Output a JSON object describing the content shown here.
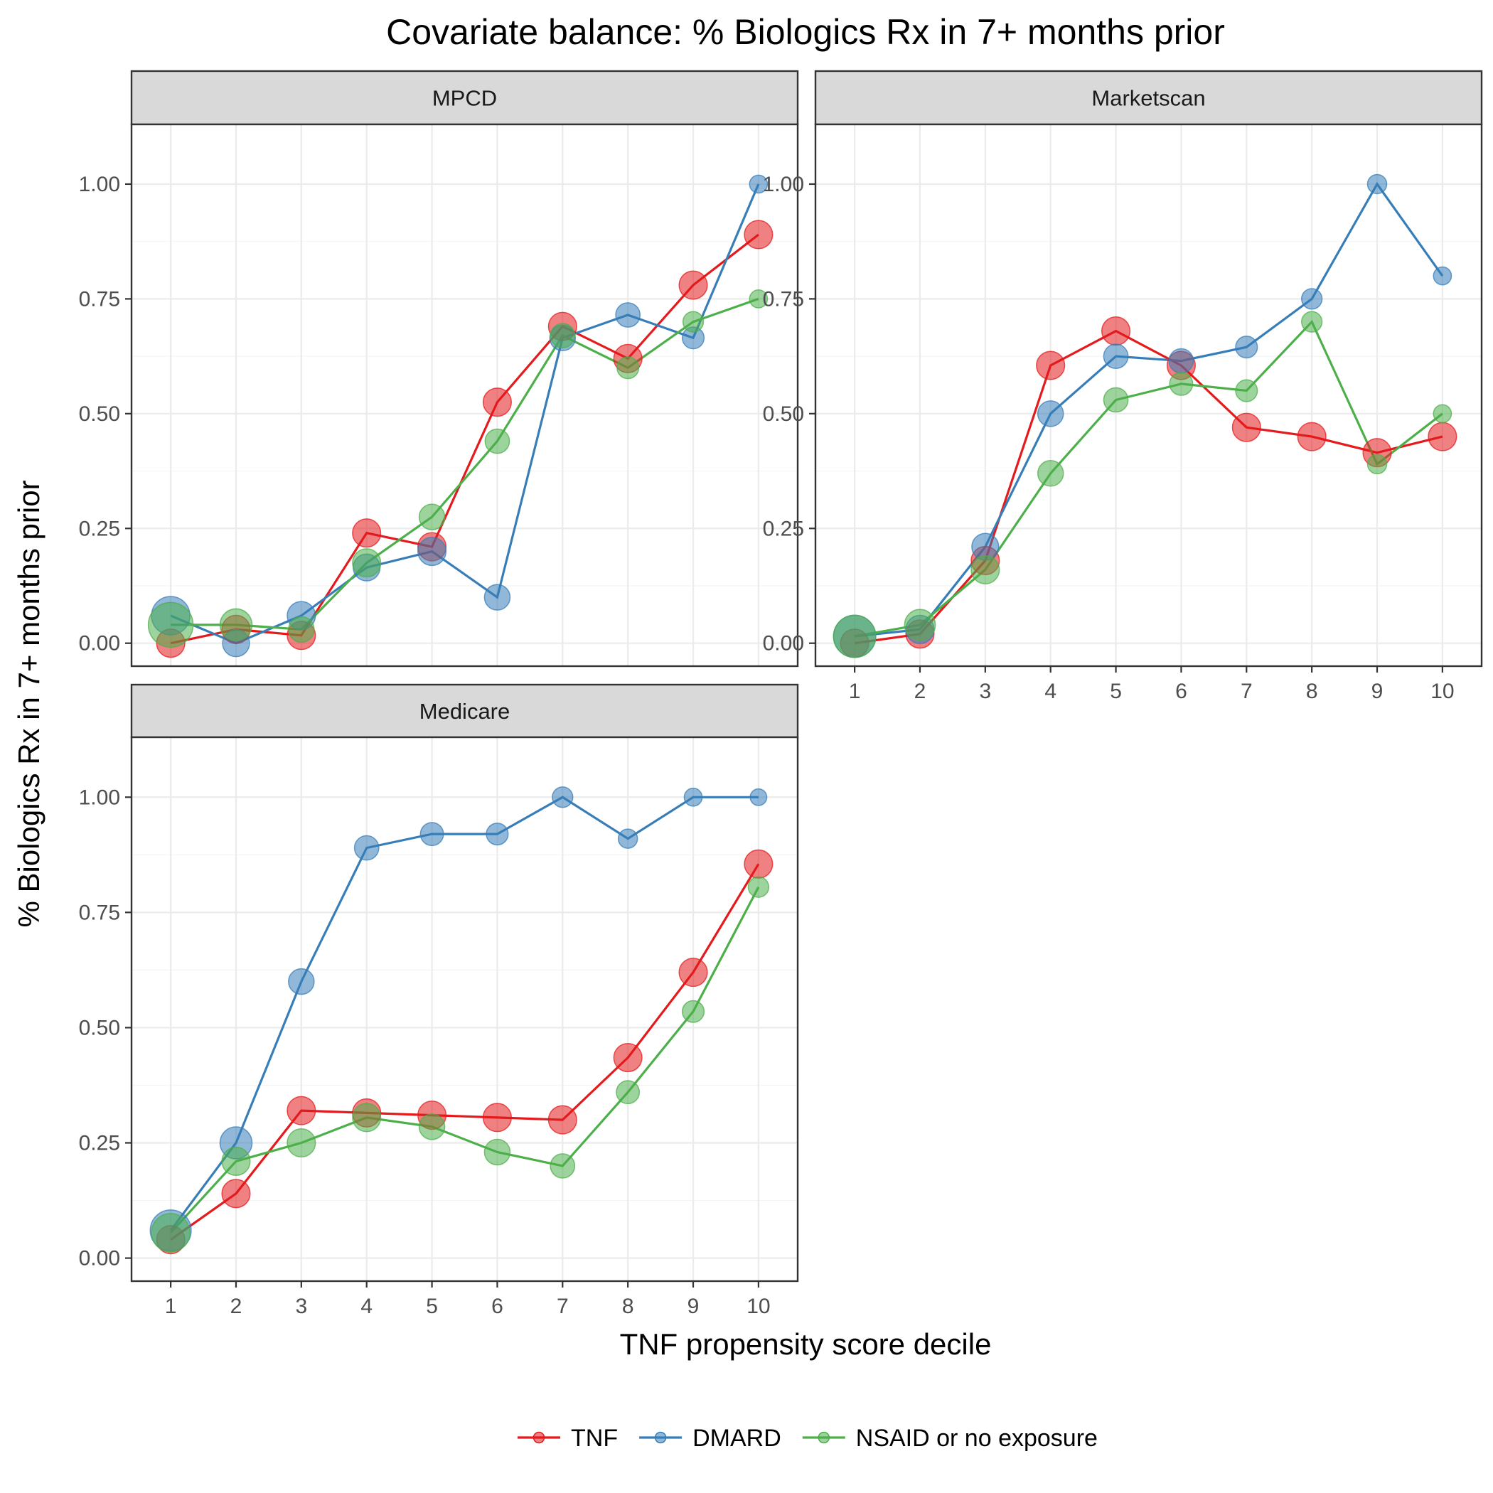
{
  "chart_data": {
    "type": "line",
    "title": "Covariate balance: % Biologics Rx in 7+ months prior",
    "xlabel": "TNF propensity score decile",
    "ylabel": "% Biologics Rx in 7+ months prior",
    "x": [
      1,
      2,
      3,
      4,
      5,
      6,
      7,
      8,
      9,
      10
    ],
    "x_tick_labels": [
      "1",
      "2",
      "3",
      "4",
      "5",
      "6",
      "7",
      "8",
      "9",
      "10"
    ],
    "ylim": [
      -0.05,
      1.13
    ],
    "y_ticks": [
      0,
      0.25,
      0.5,
      0.75,
      1.0
    ],
    "y_tick_labels": [
      "0.00",
      "0.25",
      "0.50",
      "0.75",
      "1.00"
    ],
    "grid": true,
    "legend": {
      "position": "bottom",
      "entries": [
        {
          "label": "TNF",
          "color": "#e41a1c"
        },
        {
          "label": "DMARD",
          "color": "#377eb8"
        },
        {
          "label": "NSAID or no exposure",
          "color": "#4daf4a"
        }
      ]
    },
    "panels": [
      {
        "name": "MPCD",
        "series": [
          {
            "name": "TNF",
            "color": "#e41a1c",
            "values": [
              0.0,
              0.03,
              0.017,
              0.24,
              0.21,
              0.525,
              0.69,
              0.62,
              0.78,
              0.89
            ],
            "sizes": [
              0.6,
              0.6,
              0.6,
              0.6,
              0.6,
              0.6,
              0.6,
              0.6,
              0.6,
              0.6
            ]
          },
          {
            "name": "DMARD",
            "color": "#377eb8",
            "values": [
              0.06,
              0.0,
              0.06,
              0.165,
              0.2,
              0.1,
              0.665,
              0.715,
              0.665,
              1.0
            ],
            "sizes": [
              1.0,
              0.55,
              0.6,
              0.55,
              0.6,
              0.5,
              0.5,
              0.45,
              0.35,
              0.2
            ]
          },
          {
            "name": "NSAID or no exposure",
            "color": "#4daf4a",
            "values": [
              0.04,
              0.04,
              0.03,
              0.175,
              0.275,
              0.44,
              0.67,
              0.6,
              0.7,
              0.75
            ],
            "sizes": [
              1.25,
              0.75,
              0.5,
              0.6,
              0.5,
              0.45,
              0.45,
              0.35,
              0.3,
              0.2
            ]
          }
        ]
      },
      {
        "name": "Marketscan",
        "series": [
          {
            "name": "TNF",
            "color": "#e41a1c",
            "values": [
              0.0,
              0.02,
              0.18,
              0.605,
              0.68,
              0.605,
              0.47,
              0.45,
              0.415,
              0.45
            ],
            "sizes": [
              0.6,
              0.6,
              0.6,
              0.6,
              0.6,
              0.6,
              0.6,
              0.6,
              0.6,
              0.6
            ]
          },
          {
            "name": "DMARD",
            "color": "#377eb8",
            "values": [
              0.015,
              0.03,
              0.21,
              0.5,
              0.625,
              0.615,
              0.645,
              0.75,
              1.0,
              0.8
            ],
            "sizes": [
              1.15,
              0.6,
              0.55,
              0.5,
              0.45,
              0.45,
              0.35,
              0.3,
              0.25,
              0.2
            ]
          },
          {
            "name": "NSAID or no exposure",
            "color": "#4daf4a",
            "values": [
              0.015,
              0.04,
              0.16,
              0.37,
              0.53,
              0.565,
              0.55,
              0.7,
              0.39,
              0.5
            ],
            "sizes": [
              1.15,
              0.7,
              0.6,
              0.5,
              0.45,
              0.4,
              0.35,
              0.3,
              0.25,
              0.2
            ]
          }
        ]
      },
      {
        "name": "Medicare",
        "series": [
          {
            "name": "TNF",
            "color": "#e41a1c",
            "values": [
              0.04,
              0.14,
              0.32,
              0.315,
              0.31,
              0.305,
              0.3,
              0.435,
              0.62,
              0.855
            ],
            "sizes": [
              0.6,
              0.6,
              0.6,
              0.6,
              0.6,
              0.6,
              0.6,
              0.6,
              0.6,
              0.6
            ]
          },
          {
            "name": "DMARD",
            "color": "#377eb8",
            "values": [
              0.06,
              0.25,
              0.6,
              0.89,
              0.92,
              0.92,
              1.0,
              0.91,
              1.0,
              1.0
            ],
            "sizes": [
              1.1,
              0.75,
              0.5,
              0.45,
              0.4,
              0.35,
              0.3,
              0.25,
              0.2,
              0.15
            ]
          },
          {
            "name": "NSAID or no exposure",
            "color": "#4daf4a",
            "values": [
              0.055,
              0.21,
              0.25,
              0.305,
              0.285,
              0.23,
              0.2,
              0.36,
              0.535,
              0.805
            ],
            "sizes": [
              1.0,
              0.6,
              0.6,
              0.6,
              0.5,
              0.5,
              0.45,
              0.4,
              0.35,
              0.3
            ]
          }
        ]
      }
    ]
  }
}
